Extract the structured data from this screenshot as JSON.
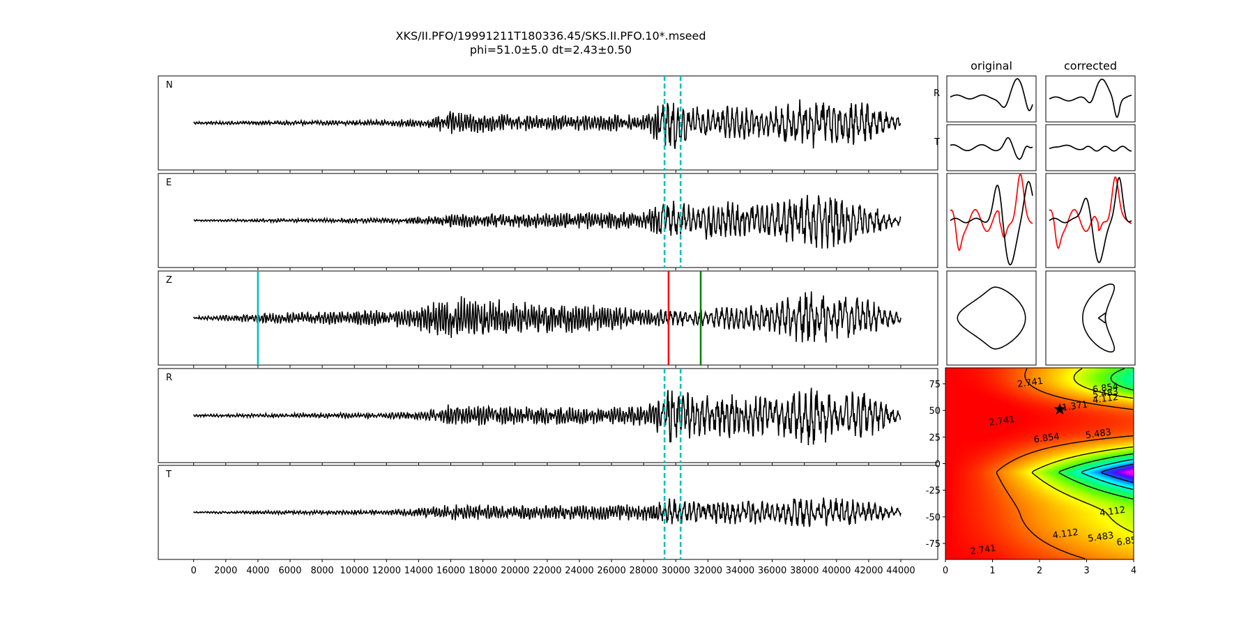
{
  "title_line1": "XKS/II.PFO/19991211T180336.45/SKS.II.PFO.10*.mseed",
  "title_line2": "phi=51.0±5.0 dt=2.43±0.50",
  "chart_data": [
    {
      "type": "line",
      "description_panels": "traces",
      "channels": [
        "N",
        "E",
        "Z",
        "R",
        "T"
      ],
      "x_ticks": [
        0,
        2000,
        4000,
        6000,
        8000,
        10000,
        12000,
        14000,
        16000,
        18000,
        20000,
        22000,
        24000,
        26000,
        28000,
        30000,
        32000,
        34000,
        36000,
        38000,
        40000,
        42000,
        44000
      ],
      "xlim": [
        -2200,
        46300
      ],
      "x_data_range": [
        0,
        44000
      ],
      "window_markers": [
        29300,
        30300
      ],
      "z_picks": [
        {
          "x": 4000,
          "color": "#00bfbf"
        },
        {
          "x": 29550,
          "color": "#ff0000"
        },
        {
          "x": 31550,
          "color": "#008000"
        }
      ],
      "amplitude_envelope": {
        "x": [
          0,
          4000,
          12000,
          14500,
          16000,
          20000,
          24000,
          28000,
          29800,
          30500,
          32000,
          36000,
          38000,
          40000,
          42000,
          44000
        ],
        "N": [
          0.03,
          0.05,
          0.07,
          0.12,
          0.28,
          0.2,
          0.2,
          0.22,
          0.7,
          0.5,
          0.42,
          0.38,
          0.65,
          0.55,
          0.5,
          0.1
        ],
        "E": [
          0.02,
          0.04,
          0.06,
          0.1,
          0.16,
          0.18,
          0.2,
          0.22,
          0.6,
          0.45,
          0.45,
          0.45,
          0.7,
          0.68,
          0.45,
          0.1
        ],
        "Z": [
          0.03,
          0.12,
          0.2,
          0.35,
          0.55,
          0.45,
          0.35,
          0.25,
          0.2,
          0.2,
          0.25,
          0.35,
          0.7,
          0.55,
          0.45,
          0.1
        ],
        "R": [
          0.03,
          0.05,
          0.07,
          0.12,
          0.3,
          0.22,
          0.22,
          0.25,
          0.85,
          0.6,
          0.55,
          0.5,
          0.75,
          0.62,
          0.55,
          0.1
        ],
        "T": [
          0.02,
          0.04,
          0.06,
          0.12,
          0.2,
          0.18,
          0.18,
          0.2,
          0.35,
          0.3,
          0.3,
          0.3,
          0.4,
          0.4,
          0.3,
          0.08
        ]
      }
    },
    {
      "type": "line",
      "description_panels": "waveform comparison",
      "column_titles": [
        "original",
        "corrected"
      ],
      "row_labels": [
        "R",
        "T"
      ],
      "series_colors": [
        "#000000",
        "#ff0000"
      ]
    },
    {
      "type": "heatmap",
      "description_panels": "misfit grid",
      "x_ticks": [
        0,
        1,
        2,
        3,
        4
      ],
      "y_ticks": [
        75,
        50,
        25,
        0,
        -25,
        -50,
        -75
      ],
      "xlim": [
        0,
        4
      ],
      "ylim": [
        -90,
        90
      ],
      "best": {
        "dt": 2.43,
        "phi": 51.0
      },
      "contour_levels": [
        "1.371",
        "2.741",
        "4.112",
        "5.483",
        "6.854"
      ],
      "contour_labels": [
        {
          "text": "1.371",
          "x": 2.75,
          "y": 54
        },
        {
          "text": "2.741",
          "x": 1.8,
          "y": 76
        },
        {
          "text": "2.741",
          "x": 1.2,
          "y": 40
        },
        {
          "text": "2.741",
          "x": 0.8,
          "y": -81
        },
        {
          "text": "6.854",
          "x": 2.15,
          "y": 24
        },
        {
          "text": "5.483",
          "x": 3.25,
          "y": 28
        },
        {
          "text": "4.112",
          "x": 3.55,
          "y": -45
        },
        {
          "text": "4.112",
          "x": 2.55,
          "y": -66
        },
        {
          "text": "5.483",
          "x": 3.3,
          "y": -69
        },
        {
          "text": "6.85",
          "x": 3.85,
          "y": -73
        },
        {
          "text": "6.854",
          "x": 3.4,
          "y": 71
        },
        {
          "text": "5.483",
          "x": 3.4,
          "y": 66
        },
        {
          "text": "4.112",
          "x": 3.4,
          "y": 61
        }
      ]
    }
  ]
}
